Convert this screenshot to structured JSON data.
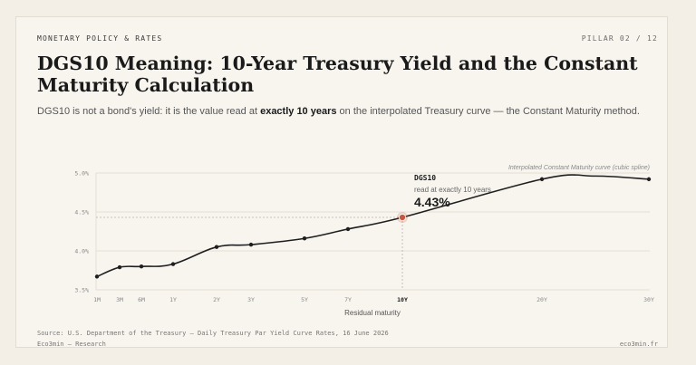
{
  "header": {
    "kicker": "MONETARY POLICY & RATES",
    "pillar": "PILLAR 02 / 12",
    "title": "DGS10 Meaning: 10-Year Treasury Yield and the Constant Maturity Calculation",
    "subtitle_pre": "DGS10 is not a bond's yield: it is the value read at ",
    "subtitle_bold": "exactly 10 years",
    "subtitle_post": " on the interpolated Treasury curve — the Constant Maturity method."
  },
  "chart_data": {
    "type": "line",
    "curve_label": "Interpolated Constant Maturity curve (cubic spline)",
    "xlabel": "Residual maturity",
    "ylabel": "",
    "ylim": [
      3.5,
      5.0
    ],
    "y_ticks": [
      "3.5%",
      "4.0%",
      "4.5%",
      "5.0%"
    ],
    "y_tick_values": [
      3.5,
      4.0,
      4.5,
      5.0
    ],
    "categories": [
      "1M",
      "3M",
      "6M",
      "1Y",
      "2Y",
      "3Y",
      "5Y",
      "7Y",
      "10Y",
      "20Y",
      "30Y"
    ],
    "values": [
      3.67,
      3.79,
      3.8,
      3.83,
      4.05,
      4.08,
      4.16,
      4.28,
      4.43,
      4.92,
      4.92
    ],
    "highlight": {
      "category": "10Y",
      "value": 4.43,
      "name": "DGS10",
      "note": "read at exactly 10 years",
      "value_label": "4.43%"
    },
    "grid": true,
    "colors": {
      "line": "#1f1f1f",
      "highlight": "#c8553d",
      "grid": "#e3ded4"
    }
  },
  "footer": {
    "source": "Source: U.S. Department of the Treasury — Daily Treasury Par Yield Curve Rates, 16 June 2026",
    "brand": "Eco3min — Research",
    "site": "eco3min.fr"
  }
}
